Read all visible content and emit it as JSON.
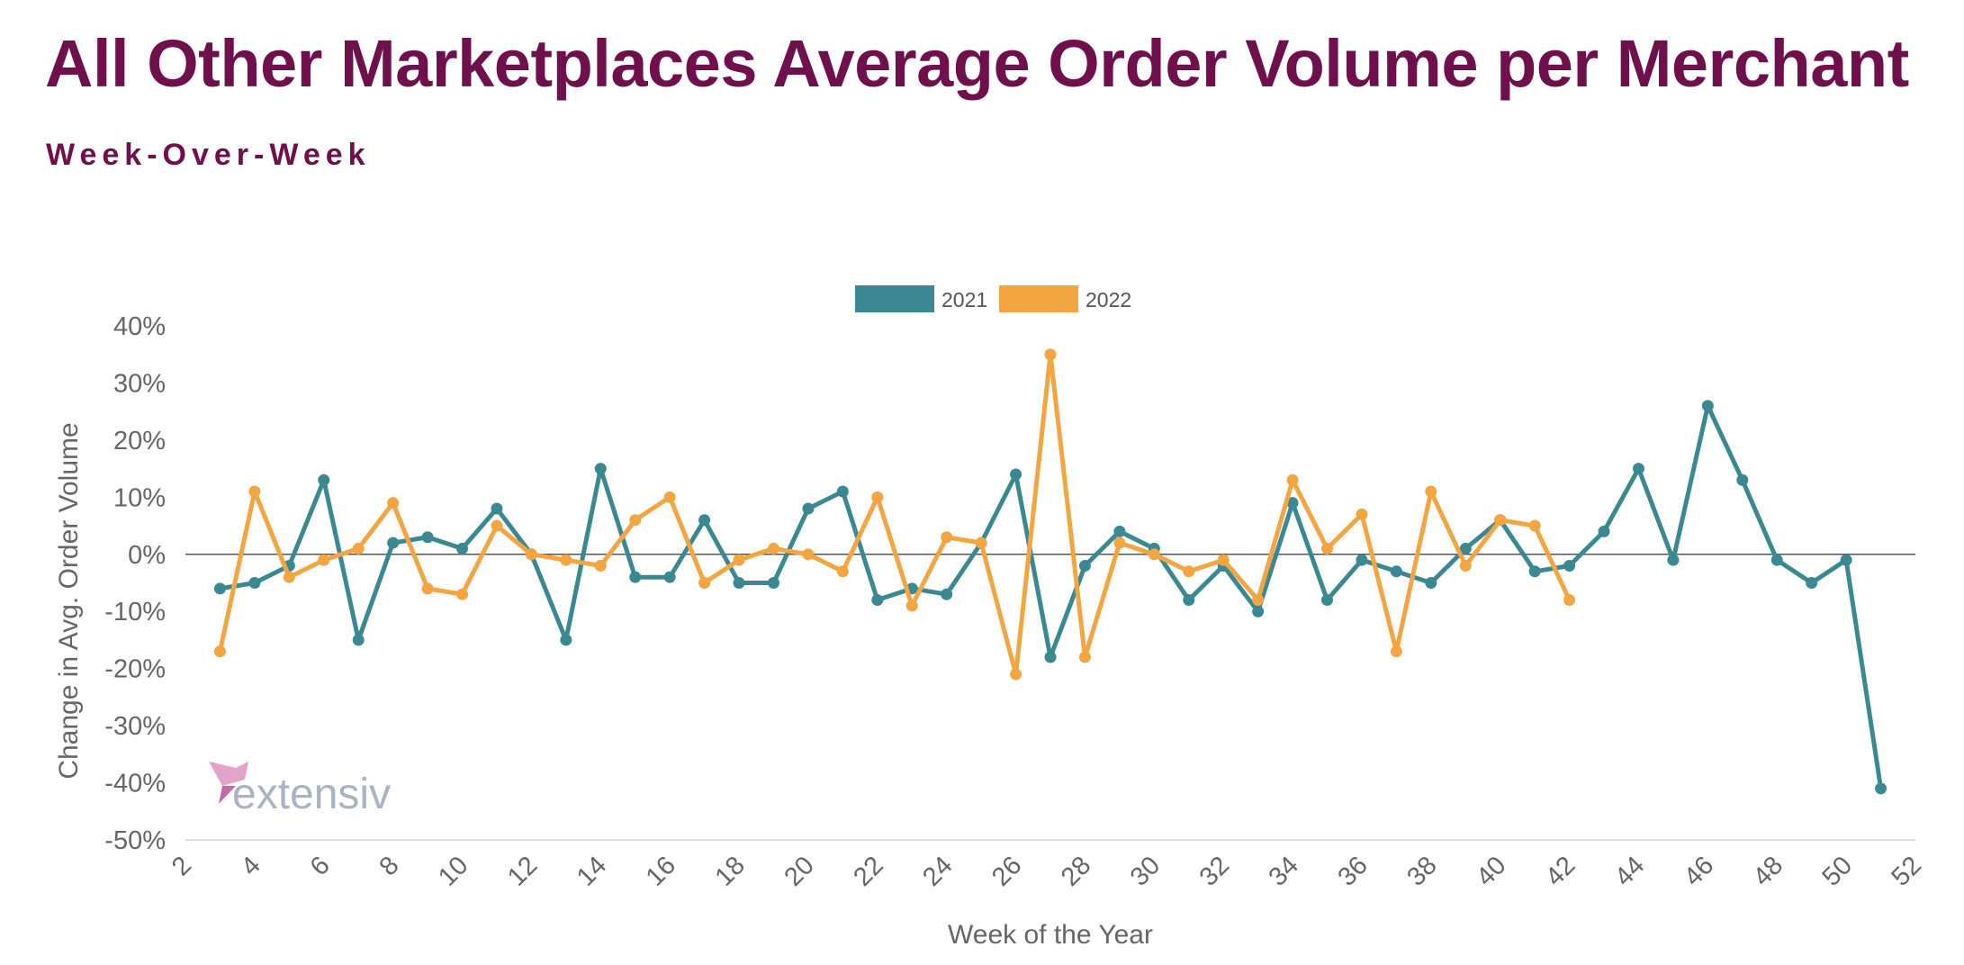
{
  "header": {
    "title": "All Other Marketplaces Average Order Volume per Merchant",
    "subtitle": "Week-Over-Week"
  },
  "logo": {
    "text": "extensiv",
    "colors": [
      "#e3a3c9",
      "#c76aa4",
      "#a9b4c2"
    ]
  },
  "colors": {
    "title": "#6f0f4c",
    "series_2021": "#3a8891",
    "series_2022": "#f2a541",
    "zero_line": "#555555",
    "axis_line": "#dddddd"
  },
  "chart_data": {
    "type": "line",
    "title": "All Other Marketplaces Average Order Volume per Merchant",
    "subtitle": "Week-Over-Week",
    "xlabel": "Week of the Year",
    "ylabel": "Change in Avg. Order Volume",
    "xlim": [
      2,
      52
    ],
    "ylim": [
      -50,
      40
    ],
    "x_ticks": [
      2,
      4,
      6,
      8,
      10,
      12,
      14,
      16,
      18,
      20,
      22,
      24,
      26,
      28,
      30,
      32,
      34,
      36,
      38,
      40,
      42,
      44,
      46,
      48,
      50,
      52
    ],
    "y_ticks": [
      -50,
      -40,
      -30,
      -20,
      -10,
      0,
      10,
      20,
      30,
      40
    ],
    "y_tick_labels": [
      "-50%",
      "-40%",
      "-30%",
      "-20%",
      "-10%",
      "0%",
      "10%",
      "20%",
      "30%",
      "40%"
    ],
    "x_tick_labels": [
      "2",
      "4",
      "6",
      "8",
      "10",
      "12",
      "14",
      "16",
      "18",
      "20",
      "22",
      "24",
      "26",
      "28",
      "30",
      "32",
      "34",
      "36",
      "38",
      "40",
      "42",
      "44",
      "46",
      "48",
      "50",
      "52"
    ],
    "legend_position": "top-center",
    "grid": false,
    "zero_line": true,
    "series": [
      {
        "name": "2021",
        "color": "#3a8891",
        "x": [
          3,
          4,
          5,
          6,
          7,
          8,
          9,
          10,
          11,
          12,
          13,
          14,
          15,
          16,
          17,
          18,
          19,
          20,
          21,
          22,
          23,
          24,
          25,
          26,
          27,
          28,
          29,
          30,
          31,
          32,
          33,
          34,
          35,
          36,
          37,
          38,
          39,
          40,
          41,
          42,
          43,
          44,
          45,
          46,
          47,
          48,
          49,
          50,
          51
        ],
        "values": [
          -6,
          -5,
          -2,
          13,
          -15,
          2,
          3,
          1,
          8,
          0,
          -15,
          15,
          -4,
          -4,
          6,
          -5,
          -5,
          8,
          11,
          -8,
          -6,
          -7,
          2,
          14,
          -18,
          -2,
          4,
          1,
          -8,
          -2,
          -10,
          9,
          -8,
          -1,
          -3,
          -5,
          1,
          6,
          -3,
          -2,
          4,
          15,
          -1,
          26,
          13,
          -1,
          -5,
          -1,
          -41
        ]
      },
      {
        "name": "2022",
        "color": "#f2a541",
        "x": [
          3,
          4,
          5,
          6,
          7,
          8,
          9,
          10,
          11,
          12,
          13,
          14,
          15,
          16,
          17,
          18,
          19,
          20,
          21,
          22,
          23,
          24,
          25,
          26,
          27,
          28,
          29,
          30,
          31,
          32,
          33,
          34,
          35,
          36,
          37,
          38,
          39,
          40,
          41,
          42
        ],
        "values": [
          -17,
          11,
          -4,
          -1,
          1,
          9,
          -6,
          -7,
          5,
          0,
          -1,
          -2,
          6,
          10,
          -5,
          -1,
          1,
          0,
          -3,
          10,
          -9,
          3,
          2,
          -21,
          35,
          -18,
          2,
          0,
          -3,
          -1,
          -8,
          13,
          1,
          7,
          -17,
          11,
          -2,
          6,
          5,
          -8
        ]
      }
    ]
  }
}
